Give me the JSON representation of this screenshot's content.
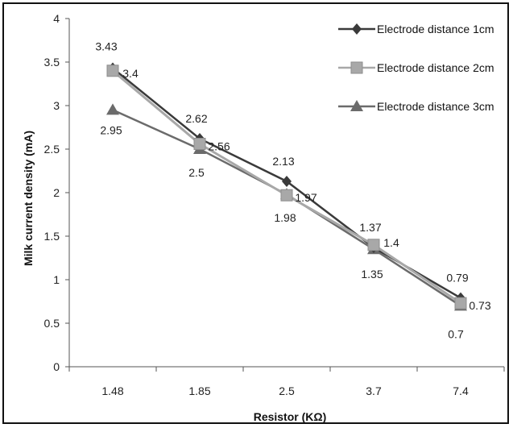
{
  "chart_data": {
    "type": "line",
    "title": "",
    "xlabel": "Resistor (KΩ)",
    "ylabel": "Milk current density (mA)",
    "categories": [
      "1.48",
      "1.85",
      "2.5",
      "3.7",
      "7.4"
    ],
    "ylim": [
      0,
      4
    ],
    "yticks": [
      "0",
      "0.5",
      "1",
      "1.5",
      "2",
      "2.5",
      "3",
      "3.5",
      "4"
    ],
    "grid": false,
    "legend_position": "top-right",
    "series": [
      {
        "name": "Electrode distance 1cm",
        "values": [
          3.43,
          2.62,
          2.13,
          1.37,
          0.79
        ],
        "labels": [
          "3.43",
          "2.62",
          "2.13",
          "1.37",
          "0.79"
        ],
        "color": "#3a3a3a",
        "marker": "diamond"
      },
      {
        "name": "Electrode distance 2cm",
        "values": [
          3.4,
          2.56,
          1.97,
          1.4,
          0.73
        ],
        "labels": [
          "3.4",
          "2.56",
          "1.97",
          "1.4",
          "0.73"
        ],
        "color": "#a8a8a8",
        "marker": "square"
      },
      {
        "name": "Electrode distance 3cm",
        "values": [
          2.95,
          2.5,
          1.98,
          1.35,
          0.7
        ],
        "labels": [
          "2.95",
          "2.5",
          "1.98",
          "1.35",
          "0.7"
        ],
        "color": "#6b6b6b",
        "marker": "triangle"
      }
    ]
  }
}
